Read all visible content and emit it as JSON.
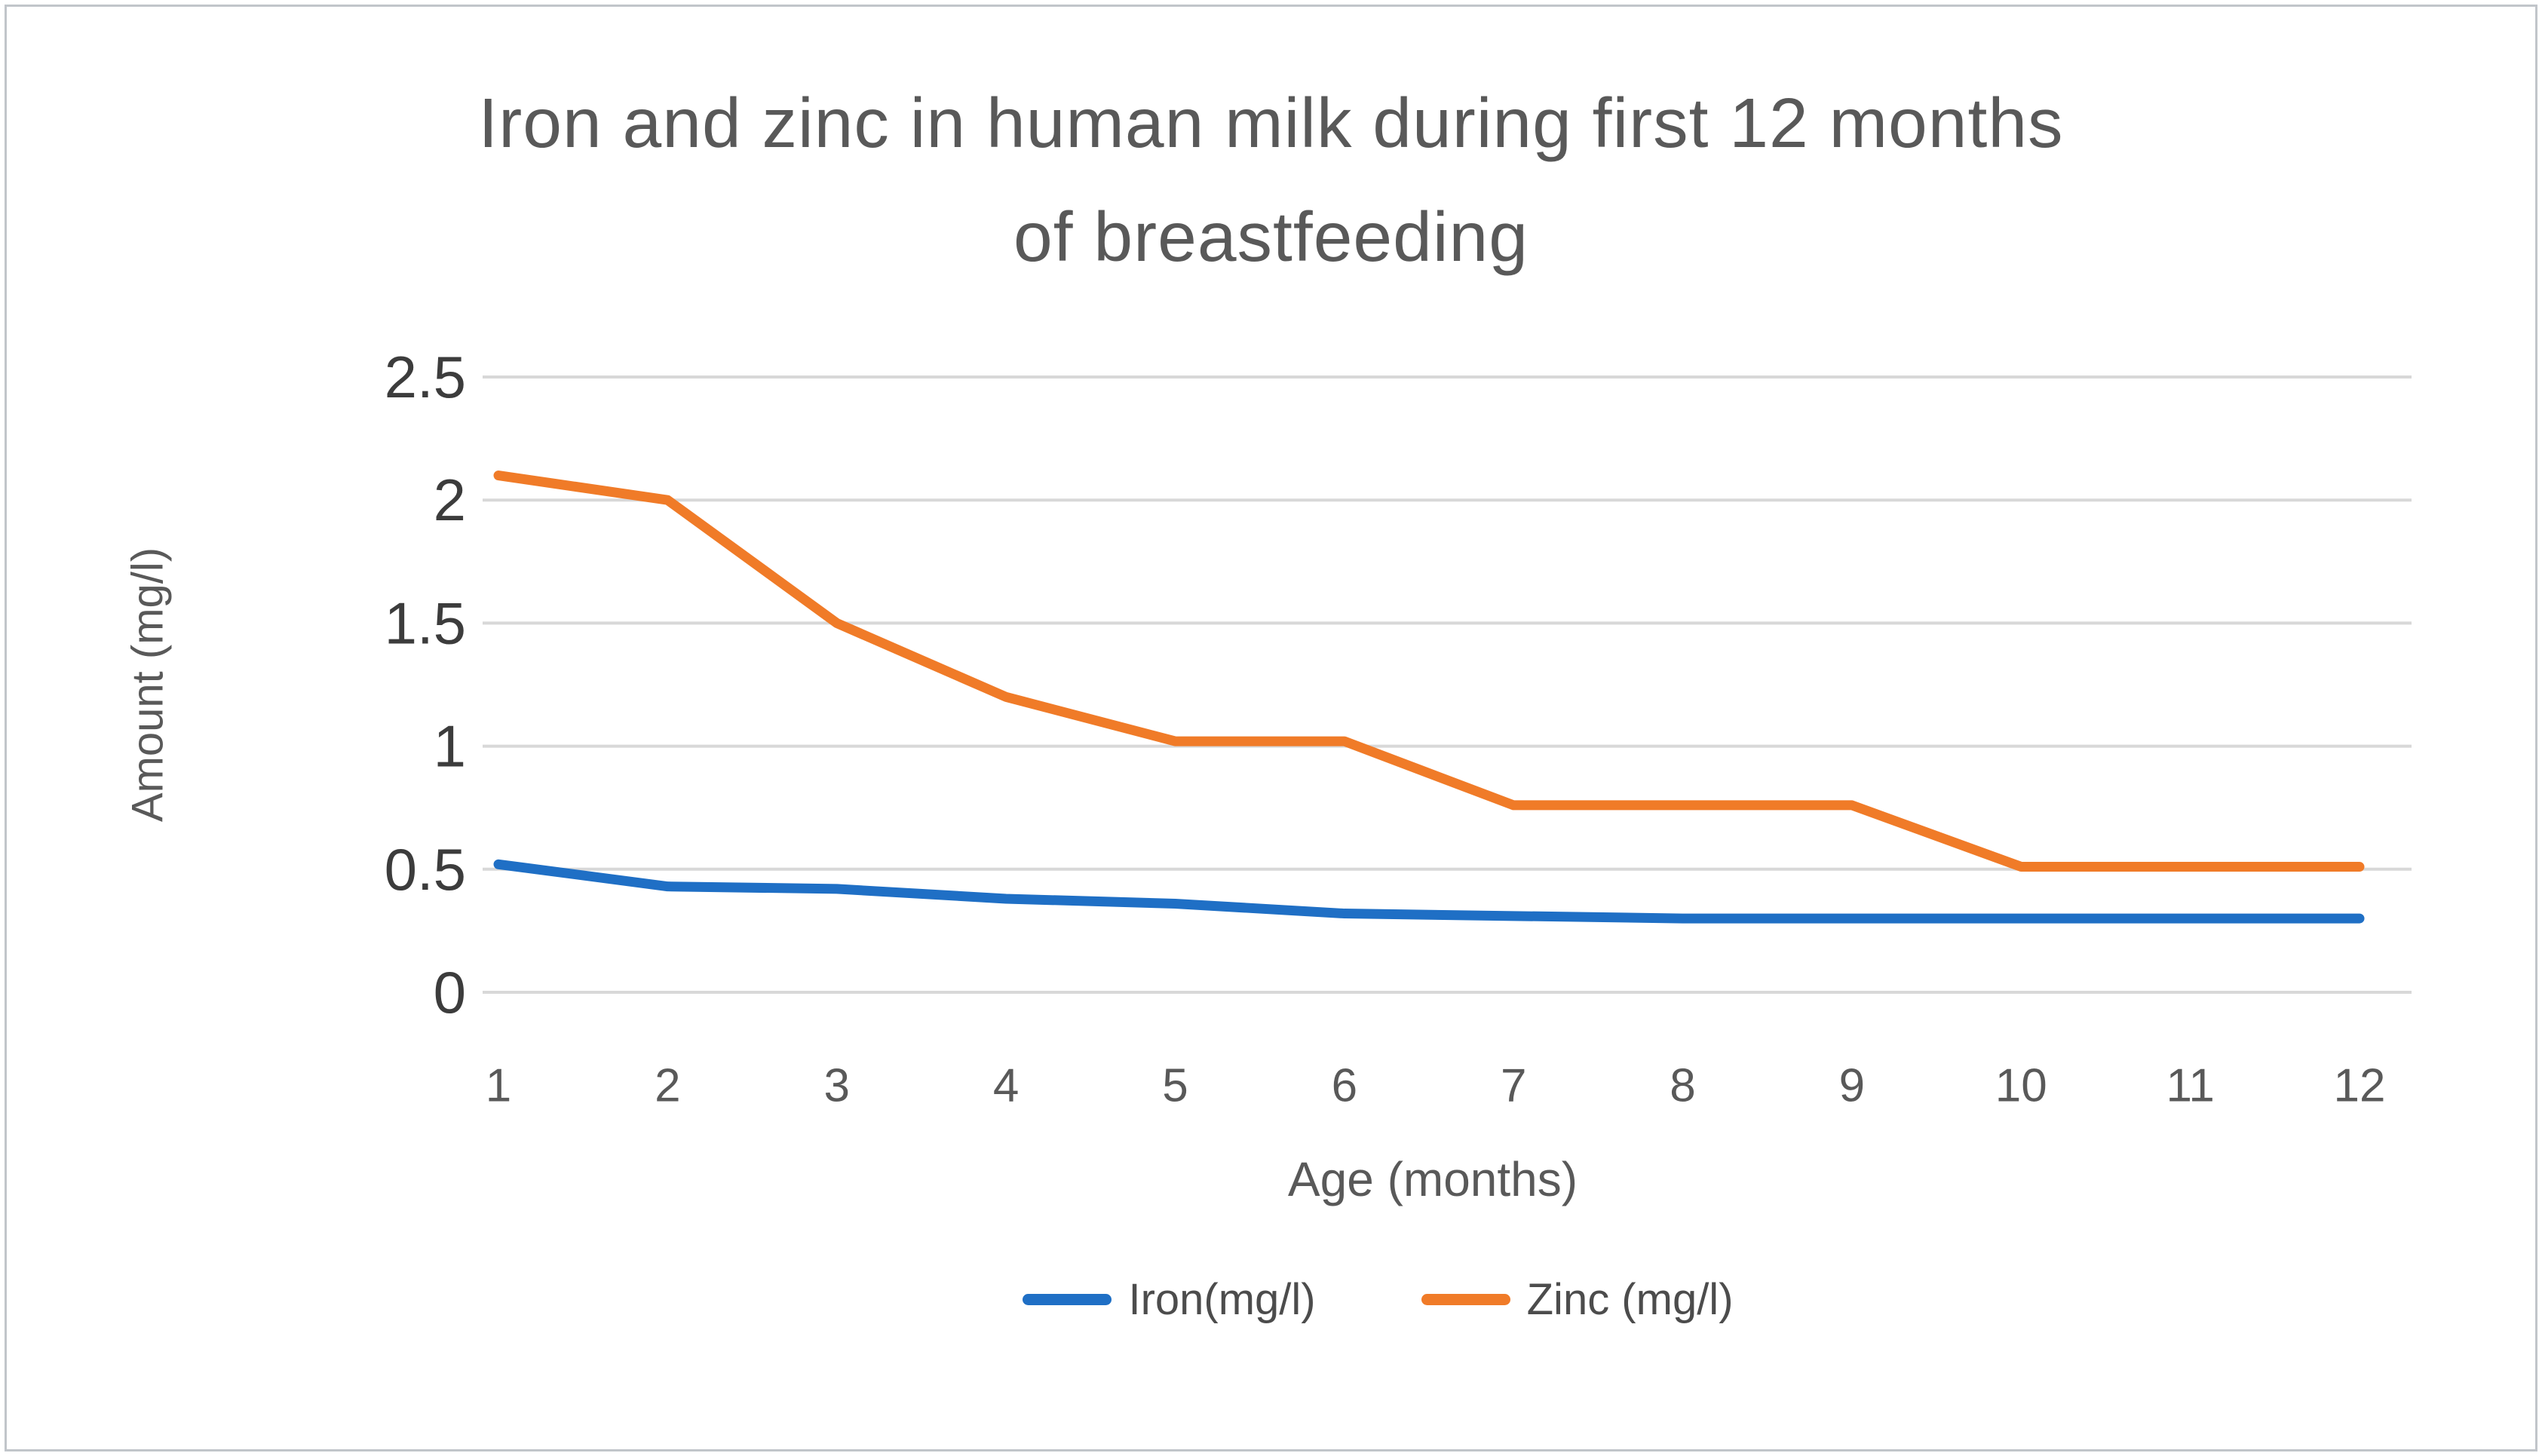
{
  "figure": {
    "title_lines": [
      "Iron and zinc in human milk during first 12 months",
      "of breastfeeding"
    ],
    "y_axis_title": "Amount (mg/l)",
    "x_axis_title": "Age (months)"
  },
  "legend": {
    "items": [
      {
        "label": "Iron(mg/l)",
        "color": "#1f6fc5"
      },
      {
        "label": "Zinc (mg/l)",
        "color": "#f07b28"
      }
    ]
  },
  "chart_data": {
    "type": "line",
    "title": "Iron and zinc in human milk during first 12 months of breastfeeding",
    "xlabel": "Age (months)",
    "ylabel": "Amount (mg/l)",
    "x": [
      1,
      2,
      3,
      4,
      5,
      6,
      7,
      8,
      9,
      10,
      11,
      12
    ],
    "series": [
      {
        "name": "Iron(mg/l)",
        "color": "#1f6fc5",
        "values": [
          0.52,
          0.43,
          0.42,
          0.38,
          0.36,
          0.32,
          0.31,
          0.3,
          0.3,
          0.3,
          0.3,
          0.3
        ]
      },
      {
        "name": "Zinc (mg/l)",
        "color": "#f07b28",
        "values": [
          2.1,
          2.0,
          1.5,
          1.2,
          1.02,
          1.02,
          0.76,
          0.76,
          0.76,
          0.51,
          0.51,
          0.51
        ]
      }
    ],
    "ylim": [
      0,
      2.5
    ],
    "yticks": [
      0,
      0.5,
      1,
      1.5,
      2,
      2.5
    ],
    "ytick_labels": [
      "0",
      "0.5",
      "1",
      "1.5",
      "2",
      "2.5"
    ],
    "grid": "horizontal-only",
    "legend_position": "bottom"
  }
}
